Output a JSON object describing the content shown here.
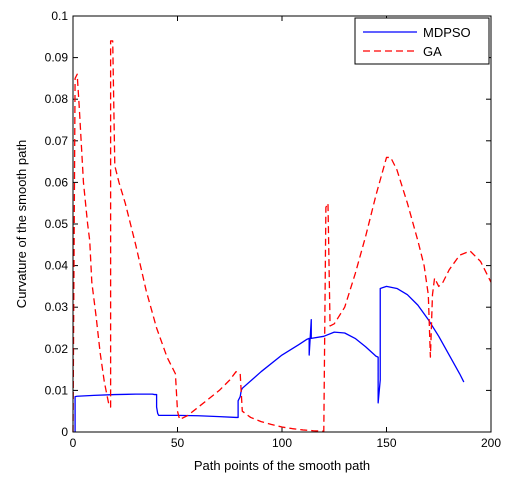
{
  "chart_data": {
    "type": "line",
    "title": "",
    "xlabel": "Path points of the smooth path",
    "ylabel": "Curvature of the smooth path",
    "xlim": [
      0,
      200
    ],
    "ylim": [
      0,
      0.1
    ],
    "xticks": [
      "0",
      "50",
      "100",
      "150",
      "200"
    ],
    "yticks": [
      "0",
      "0.01",
      "0.02",
      "0.03",
      "0.04",
      "0.05",
      "0.06",
      "0.07",
      "0.08",
      "0.09",
      "0.1"
    ],
    "grid": false,
    "legend_position": "top-right",
    "series": [
      {
        "name": "MDPSO",
        "color": "#0000ff",
        "style": "solid",
        "points": [
          [
            1,
            0
          ],
          [
            1,
            0.0085
          ],
          [
            2,
            0.0086
          ],
          [
            10,
            0.0088
          ],
          [
            20,
            0.009
          ],
          [
            30,
            0.0091
          ],
          [
            38,
            0.0091
          ],
          [
            39,
            0.009
          ],
          [
            40,
            0.009
          ],
          [
            40,
            0.006
          ],
          [
            40.5,
            0.0045
          ],
          [
            41,
            0.004
          ],
          [
            50,
            0.004
          ],
          [
            60,
            0.0039
          ],
          [
            70,
            0.0037
          ],
          [
            78,
            0.0035
          ],
          [
            79,
            0.0035
          ],
          [
            79,
            0.0075
          ],
          [
            80,
            0.0085
          ],
          [
            80.5,
            0.01
          ],
          [
            81,
            0.0105
          ],
          [
            90,
            0.0145
          ],
          [
            100,
            0.0185
          ],
          [
            108,
            0.021
          ],
          [
            112,
            0.0223
          ],
          [
            113,
            0.0225
          ],
          [
            113,
            0.0185
          ],
          [
            114,
            0.027
          ],
          [
            114,
            0.0225
          ],
          [
            120,
            0.023
          ],
          [
            125,
            0.024
          ],
          [
            130,
            0.0238
          ],
          [
            135,
            0.0225
          ],
          [
            140,
            0.0205
          ],
          [
            145,
            0.0182
          ],
          [
            146,
            0.018
          ],
          [
            146,
            0.007
          ],
          [
            147,
            0.0125
          ],
          [
            147,
            0.0345
          ],
          [
            150,
            0.035
          ],
          [
            155,
            0.0345
          ],
          [
            160,
            0.033
          ],
          [
            165,
            0.0305
          ],
          [
            170,
            0.027
          ],
          [
            175,
            0.023
          ],
          [
            180,
            0.0185
          ],
          [
            185,
            0.014
          ],
          [
            187,
            0.012
          ]
        ]
      },
      {
        "name": "GA",
        "color": "#ff0000",
        "style": "dashed",
        "points": [
          [
            0,
            0
          ],
          [
            1,
            0.085
          ],
          [
            2,
            0.086
          ],
          [
            3,
            0.078
          ],
          [
            5,
            0.06
          ],
          [
            7,
            0.05
          ],
          [
            8,
            0.046
          ],
          [
            9,
            0.036
          ],
          [
            11,
            0.028
          ],
          [
            13,
            0.019
          ],
          [
            15,
            0.012
          ],
          [
            17,
            0.007
          ],
          [
            18,
            0.006
          ],
          [
            18,
            0.094
          ],
          [
            19,
            0.094
          ],
          [
            20,
            0.064
          ],
          [
            21,
            0.062
          ],
          [
            22,
            0.06
          ],
          [
            25,
            0.055
          ],
          [
            30,
            0.045
          ],
          [
            35,
            0.034
          ],
          [
            40,
            0.025
          ],
          [
            45,
            0.018
          ],
          [
            49,
            0.014
          ],
          [
            50,
            0.005
          ],
          [
            51,
            0.003
          ],
          [
            55,
            0.004
          ],
          [
            60,
            0.006
          ],
          [
            65,
            0.008
          ],
          [
            70,
            0.01
          ],
          [
            75,
            0.0125
          ],
          [
            78,
            0.0145
          ],
          [
            80,
            0.014
          ],
          [
            81,
            0.005
          ],
          [
            85,
            0.0035
          ],
          [
            90,
            0.0025
          ],
          [
            95,
            0.0018
          ],
          [
            100,
            0.0012
          ],
          [
            105,
            0.0008
          ],
          [
            110,
            0.0005
          ],
          [
            115,
            0.0003
          ],
          [
            120,
            0.0002
          ],
          [
            121,
            0.054
          ],
          [
            122,
            0.055
          ],
          [
            123,
            0.0255
          ],
          [
            125,
            0.026
          ],
          [
            130,
            0.03
          ],
          [
            135,
            0.038
          ],
          [
            140,
            0.047
          ],
          [
            145,
            0.057
          ],
          [
            150,
            0.066
          ],
          [
            152,
            0.066
          ],
          [
            155,
            0.063
          ],
          [
            160,
            0.055
          ],
          [
            165,
            0.046
          ],
          [
            168,
            0.04
          ],
          [
            170,
            0.033
          ],
          [
            171,
            0.018
          ],
          [
            172,
            0.033
          ],
          [
            173,
            0.037
          ],
          [
            175,
            0.035
          ],
          [
            177,
            0.036
          ],
          [
            180,
            0.039
          ],
          [
            185,
            0.0425
          ],
          [
            190,
            0.0435
          ],
          [
            195,
            0.041
          ],
          [
            200,
            0.036
          ]
        ]
      }
    ]
  }
}
